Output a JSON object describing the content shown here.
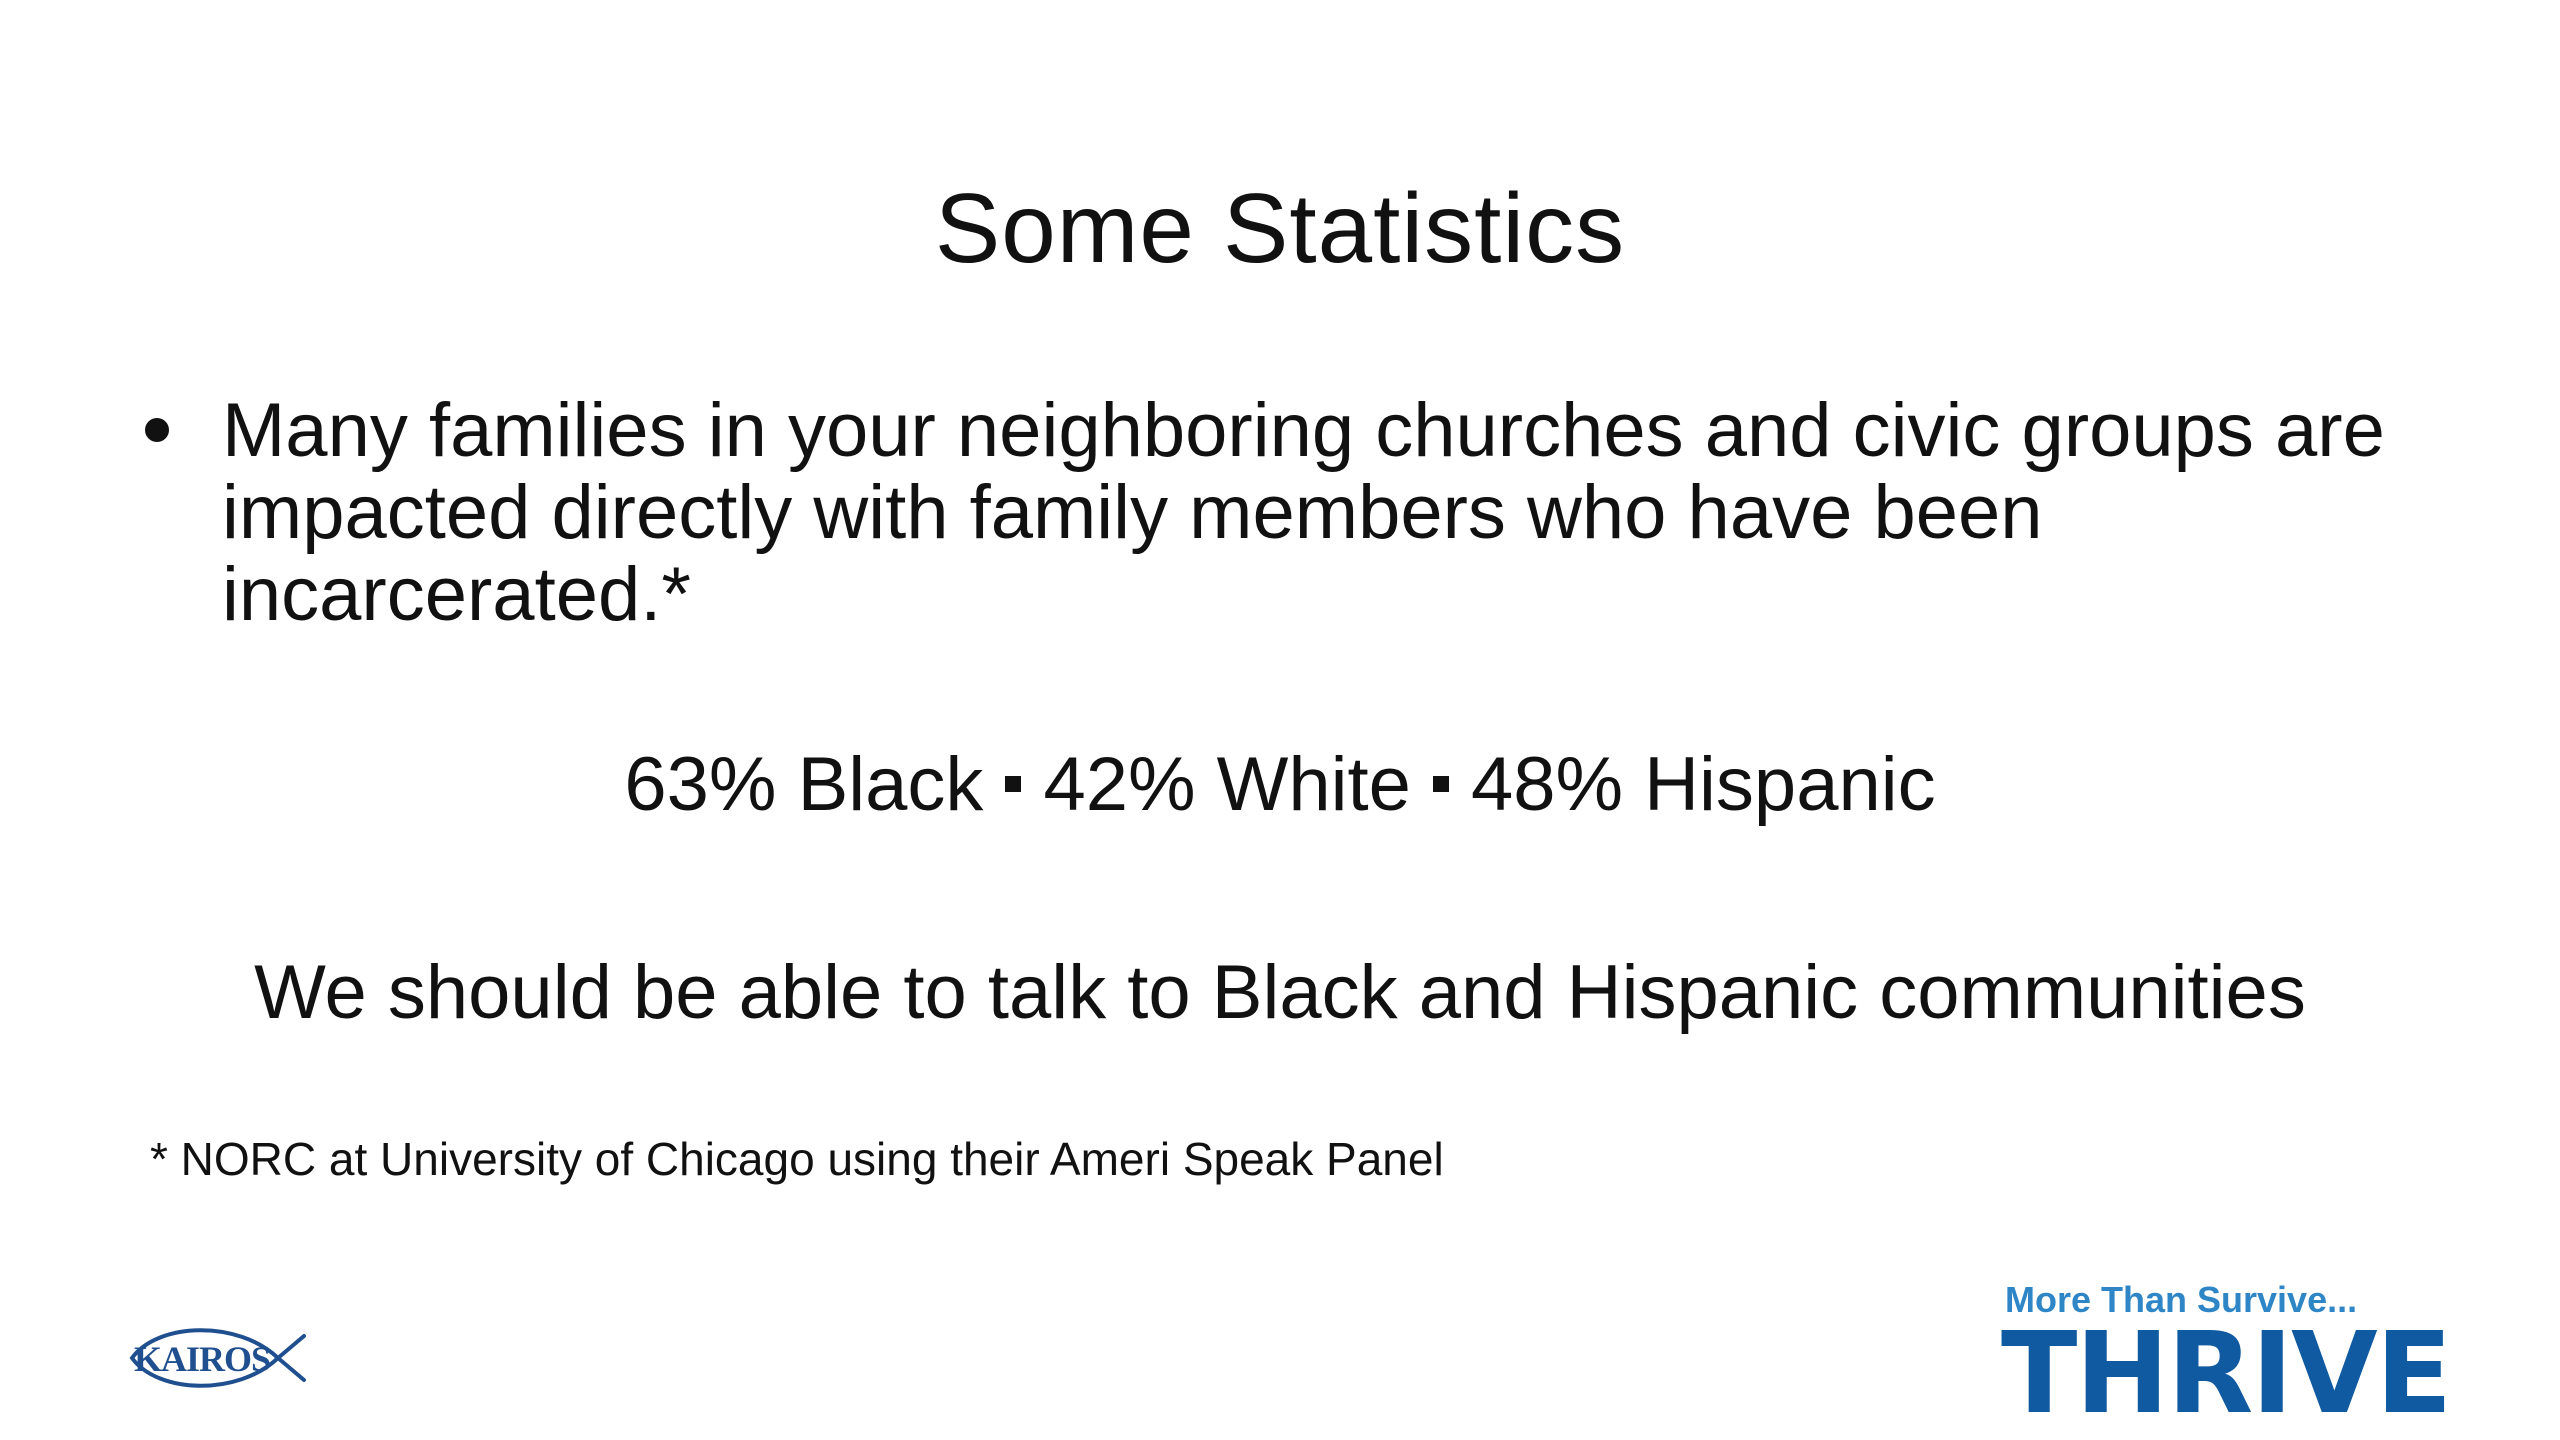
{
  "slide": {
    "title": "Some Statistics",
    "bullet": "Many families in your neighboring churches and civic groups are impacted directly with family members who have been incarcerated.*",
    "stats": [
      {
        "label": "63% Black"
      },
      {
        "label": "42% White"
      },
      {
        "label": "48% Hispanic"
      }
    ],
    "conclusion": "We should be able to talk to Black and Hispanic communities",
    "footnote": "* NORC at University of Chicago using their Ameri Speak Panel"
  },
  "logos": {
    "kairos": {
      "text": "KAIROS",
      "icon": "fish-icon",
      "color": "#1f4f8f"
    },
    "thrive": {
      "tagline": "More Than Survive...",
      "word": "THRIVE",
      "tagline_color": "#2f86c6",
      "word_color": "#0f5aa0"
    }
  }
}
